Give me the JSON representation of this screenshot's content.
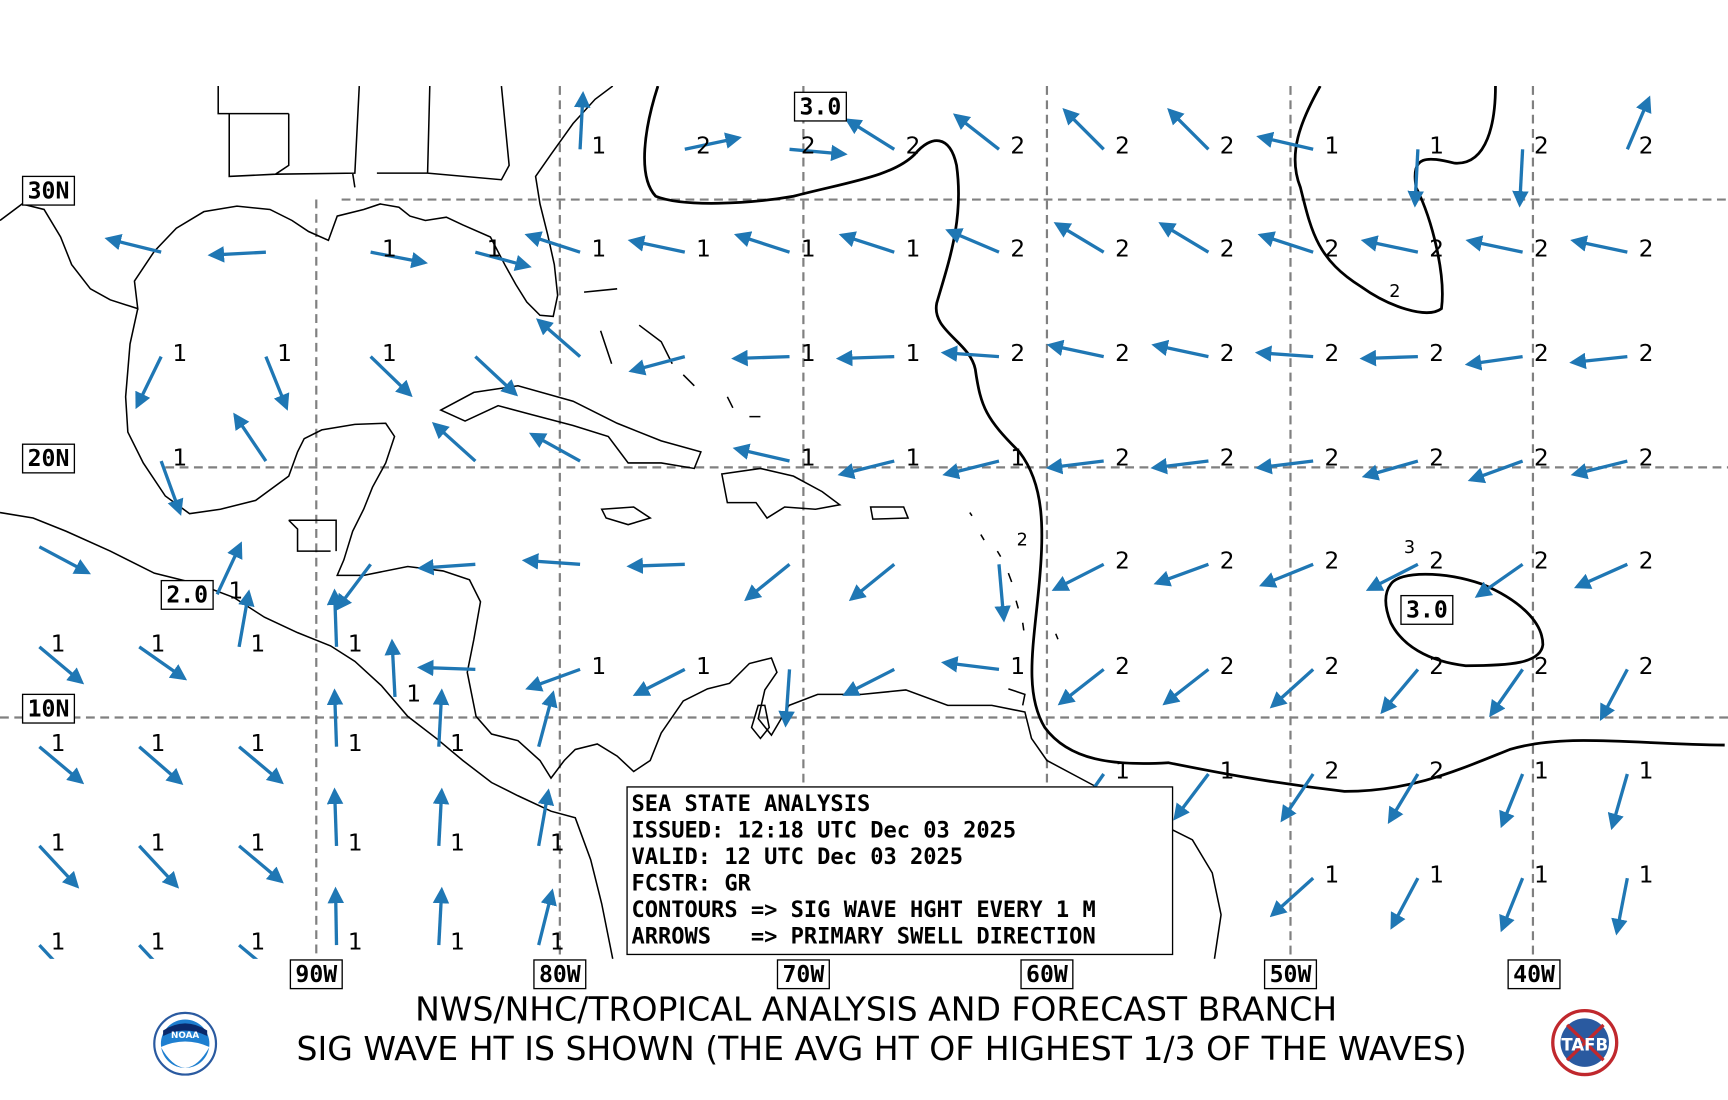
{
  "map": {
    "arrow_color": "#1f77b4",
    "contour_color": "#000000",
    "grid_color": "#808080",
    "lat_labels": [
      {
        "text": "30N",
        "lat": 30
      },
      {
        "text": "20N",
        "lat": 20
      },
      {
        "text": "10N",
        "lat": 10
      }
    ],
    "lon_labels": [
      {
        "text": "90W",
        "lon": -90
      },
      {
        "text": "80W",
        "lon": -80
      },
      {
        "text": "70W",
        "lon": -70
      },
      {
        "text": "60W",
        "lon": -60
      },
      {
        "text": "50W",
        "lon": -50
      },
      {
        "text": "40W",
        "lon": -40
      }
    ],
    "contour_boxes": [
      {
        "text": "3.0",
        "lon": -69.3,
        "lat": 33.4
      },
      {
        "text": "3.0",
        "lon": -44.4,
        "lat": 14.3
      },
      {
        "text": "2.0",
        "lon": -95.3,
        "lat": 14.9
      }
    ],
    "contour_small_labels": [
      {
        "text": "2",
        "lon": -60.2,
        "lat": 16.7
      },
      {
        "text": "2",
        "lon": -44.9,
        "lat": 26.2
      },
      {
        "text": "3",
        "lon": -44.3,
        "lat": 16.4
      }
    ]
  },
  "main_grid": {
    "lons": [
      -95.6,
      -91.3,
      -87.0,
      -82.7,
      -78.4,
      -74.1,
      -69.8,
      -65.5,
      -61.2,
      -56.9,
      -52.6,
      -48.3,
      -44.0,
      -39.7,
      -35.4
    ],
    "rows": [
      {
        "lat": 32.0,
        "dirs": [
          null,
          null,
          null,
          null,
          3,
          78,
          95,
          302,
          308,
          315,
          315,
          283,
          183,
          183,
          23
        ],
        "labels": [
          "",
          "",
          "",
          "",
          "1",
          "2",
          "2",
          "2",
          "2",
          "2",
          "2",
          "1",
          "1",
          "2",
          "2"
        ]
      },
      {
        "lat": 28.2,
        "dirs": [
          284,
          267,
          101,
          105,
          288,
          282,
          288,
          288,
          293,
          301,
          301,
          288,
          282,
          282,
          282
        ],
        "labels": [
          "",
          "",
          "1",
          "1",
          "1",
          "1",
          "1",
          "1",
          "2",
          "2",
          "2",
          "2",
          "2",
          "2",
          "2"
        ]
      },
      {
        "lat": 24.3,
        "dirs": [
          206,
          158,
          134,
          133,
          311,
          255,
          268,
          268,
          274,
          282,
          282,
          274,
          268,
          262,
          264
        ],
        "labels": [
          "1",
          "1",
          "1",
          "",
          "",
          "",
          "1",
          "1",
          "2",
          "2",
          "2",
          "2",
          "2",
          "2",
          "2"
        ]
      },
      {
        "lat": 20.4,
        "dirs": [
          160,
          326,
          null,
          312,
          299,
          null,
          283,
          256,
          256,
          263,
          263,
          263,
          254,
          250,
          256
        ],
        "labels": [
          "1",
          "",
          "",
          "",
          "",
          "",
          "1",
          "1",
          "1",
          "2",
          "2",
          "2",
          "2",
          "2",
          "2"
        ]
      },
      {
        "lat": 16.3,
        "dirs": [
          null,
          null,
          217,
          266,
          274,
          268,
          231,
          231,
          175,
          243,
          250,
          248,
          243,
          235,
          246
        ],
        "labels": [
          "",
          "",
          "",
          "",
          "",
          "",
          "",
          "",
          "",
          "2",
          "2",
          "2",
          "2",
          "2",
          "2"
        ]
      },
      {
        "lat": 12.1,
        "dirs": [
          null,
          null,
          null,
          272,
          250,
          243,
          184,
          243,
          277,
          232,
          232,
          228,
          220,
          215,
          208
        ],
        "labels": [
          "",
          "",
          "",
          "",
          "1",
          "1",
          "",
          "",
          "1",
          "2",
          "2",
          "2",
          "2",
          "2",
          "2"
        ]
      },
      {
        "lat": 7.9,
        "dirs": [
          null,
          null,
          null,
          null,
          null,
          null,
          null,
          null,
          null,
          215,
          217,
          214,
          211,
          202,
          196
        ],
        "labels": [
          "",
          "",
          "",
          "",
          "",
          "",
          "",
          "",
          "",
          "1",
          "1",
          "2",
          "2",
          "1",
          "1"
        ]
      },
      {
        "lat": 3.7,
        "dirs": [
          null,
          null,
          null,
          null,
          null,
          null,
          null,
          null,
          null,
          null,
          null,
          228,
          208,
          202,
          191
        ],
        "labels": [
          "",
          "",
          "",
          "",
          "",
          "",
          "",
          "",
          "",
          "",
          "",
          "1",
          "1",
          "1",
          "1"
        ]
      }
    ]
  },
  "west_grid": {
    "lons": [
      -100.6,
      -96.5,
      -92.4,
      -88.4,
      -84.2,
      -80.1
    ],
    "rows": [
      {
        "lat": 17.0,
        "dirs": [
          118,
          null,
          null,
          null,
          null,
          null
        ],
        "labels": [
          "",
          "",
          "",
          "",
          "",
          ""
        ]
      },
      {
        "lat": 13.0,
        "dirs": [
          130,
          125,
          10,
          358,
          null,
          null
        ],
        "labels": [
          "1",
          "1",
          "1",
          "1",
          "",
          ""
        ]
      },
      {
        "lat": 9.0,
        "dirs": [
          130,
          131,
          130,
          358,
          3,
          15
        ],
        "labels": [
          "1",
          "1",
          "1",
          "1",
          "1",
          ""
        ]
      },
      {
        "lat": 5.0,
        "dirs": [
          137,
          137,
          130,
          358,
          3,
          10
        ],
        "labels": [
          "1",
          "1",
          "1",
          "1",
          "1",
          "1"
        ]
      },
      {
        "lat": 1.0,
        "dirs": [
          137,
          137,
          130,
          359,
          3,
          14
        ],
        "labels": [
          "1",
          "1",
          "1",
          "1",
          "1",
          "1"
        ]
      }
    ]
  },
  "extra_arrows": [
    {
      "lon": -93.3,
      "lat": 15.1,
      "dir": 25,
      "label": "1"
    },
    {
      "lon": -86.0,
      "lat": 11.0,
      "dir": 357,
      "label": "1"
    }
  ],
  "info_box": {
    "lines": [
      "SEA STATE ANALYSIS",
      "ISSUED: 12:18 UTC Dec 03 2025",
      "VALID: 12 UTC Dec 03 2025",
      "FCSTR: GR",
      "CONTOURS => SIG WAVE HGHT EVERY 1 M",
      "ARROWS   => PRIMARY SWELL DIRECTION"
    ]
  },
  "footer": {
    "line1": "NWS/NHC/TROPICAL ANALYSIS AND FORECAST BRANCH",
    "line2": "SIG WAVE HT IS SHOWN (THE AVG HT OF HIGHEST 1/3 OF THE WAVES)",
    "left_logo": "NOAA",
    "right_logo": "TAFB"
  }
}
